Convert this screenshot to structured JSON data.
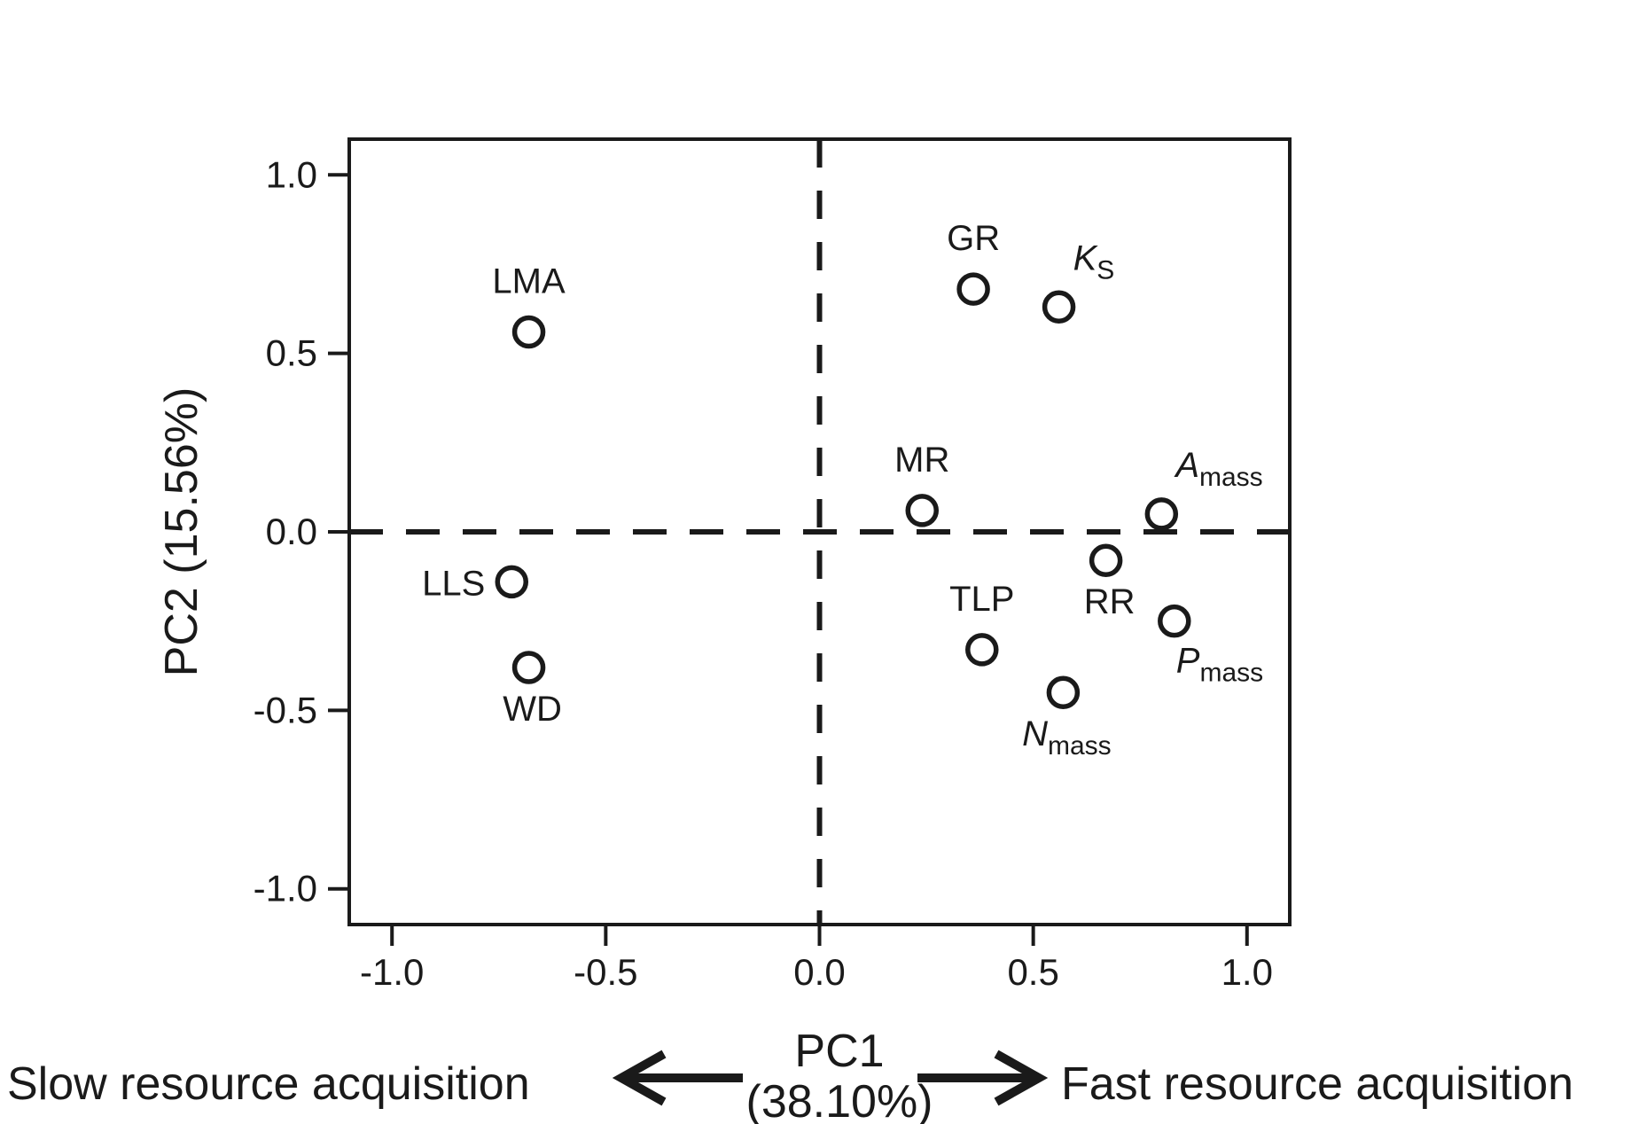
{
  "figure": {
    "background": "#ffffff",
    "ink_color": "#1a1a1a",
    "marker_fill": "#ffffff"
  },
  "chart_data": {
    "type": "scatter",
    "title": "",
    "xlabel_line1": "PC1",
    "xlabel_line2": "(38.10%)",
    "ylabel": "PC2 (15.56%)",
    "xlim": [
      -1.1,
      1.1
    ],
    "ylim": [
      -1.1,
      1.1
    ],
    "xticks": [
      -1.0,
      -0.5,
      0.0,
      0.5,
      1.0
    ],
    "xtick_labels": [
      "-1.0",
      "-0.5",
      "0.0",
      "0.5",
      "1.0"
    ],
    "yticks": [
      -1.0,
      -0.5,
      0.0,
      0.5,
      1.0
    ],
    "ytick_labels": [
      "1.0",
      "0.5",
      "0.0",
      "-0.5",
      "-1.0"
    ],
    "ytick_values_top_to_bottom": [
      1.0,
      0.5,
      0.0,
      -0.5,
      -1.0
    ],
    "grid": false,
    "legend": null,
    "reference_lines": [
      {
        "axis": "vertical",
        "value": 0.0,
        "style": "dashed"
      },
      {
        "axis": "horizontal",
        "value": 0.0,
        "style": "dashed"
      }
    ],
    "marker": {
      "shape": "open-circle",
      "radius_px": 16,
      "stroke_px": 5.5
    },
    "points": [
      {
        "label": "LMA",
        "sub": "",
        "italic": false,
        "x": -0.68,
        "y": 0.56,
        "label_position": "above"
      },
      {
        "label": "GR",
        "sub": "",
        "italic": false,
        "x": 0.36,
        "y": 0.68,
        "label_position": "above"
      },
      {
        "label": "K",
        "sub": "S",
        "italic": true,
        "x": 0.56,
        "y": 0.63,
        "label_position": "above-right"
      },
      {
        "label": "MR",
        "sub": "",
        "italic": false,
        "x": 0.24,
        "y": 0.06,
        "label_position": "above"
      },
      {
        "label": "A",
        "sub": "mass",
        "italic": true,
        "x": 0.8,
        "y": 0.05,
        "label_position": "above-right"
      },
      {
        "label": "RR",
        "sub": "",
        "italic": false,
        "x": 0.67,
        "y": -0.08,
        "label_position": "below"
      },
      {
        "label": "TLP",
        "sub": "",
        "italic": false,
        "x": 0.38,
        "y": -0.33,
        "label_position": "above"
      },
      {
        "label": "P",
        "sub": "mass",
        "italic": true,
        "x": 0.83,
        "y": -0.25,
        "label_position": "below-right"
      },
      {
        "label": "N",
        "sub": "mass",
        "italic": true,
        "x": 0.57,
        "y": -0.45,
        "label_position": "below"
      },
      {
        "label": "LLS",
        "sub": "",
        "italic": false,
        "x": -0.72,
        "y": -0.14,
        "label_position": "left"
      },
      {
        "label": "WD",
        "sub": "",
        "italic": false,
        "x": -0.68,
        "y": -0.38,
        "label_position": "below"
      }
    ],
    "annotations": {
      "slow_label": "Slow resource acquisition",
      "fast_label": "Fast resource acquisition"
    }
  }
}
